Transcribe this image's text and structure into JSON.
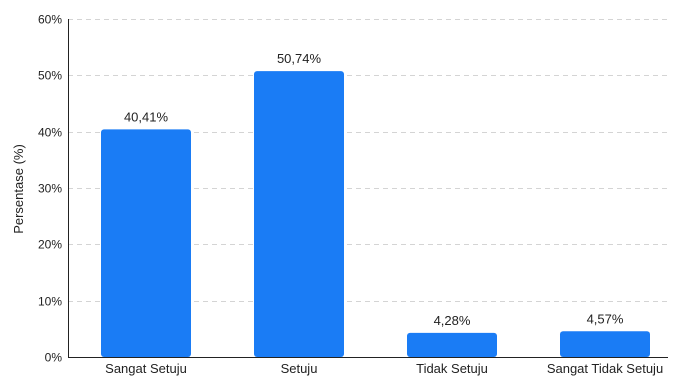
{
  "chart_data": {
    "type": "bar",
    "title": "",
    "xlabel": "",
    "ylabel": "Persentase (%)",
    "categories": [
      "Sangat Setuju",
      "Setuju",
      "Tidak Setuju",
      "Sangat Tidak Setuju"
    ],
    "values": [
      40.41,
      50.74,
      4.28,
      4.57
    ],
    "value_labels": [
      "40,41%",
      "50,74%",
      "4,28%",
      "4,57%"
    ],
    "ylim": [
      0,
      60
    ],
    "yticks": [
      0,
      10,
      20,
      30,
      40,
      50,
      60
    ],
    "ytick_labels": [
      "0%",
      "10%",
      "20%",
      "30%",
      "40%",
      "50%",
      "60%"
    ],
    "grid": true,
    "legend": "none",
    "bar_color": "#1a7cf5"
  }
}
